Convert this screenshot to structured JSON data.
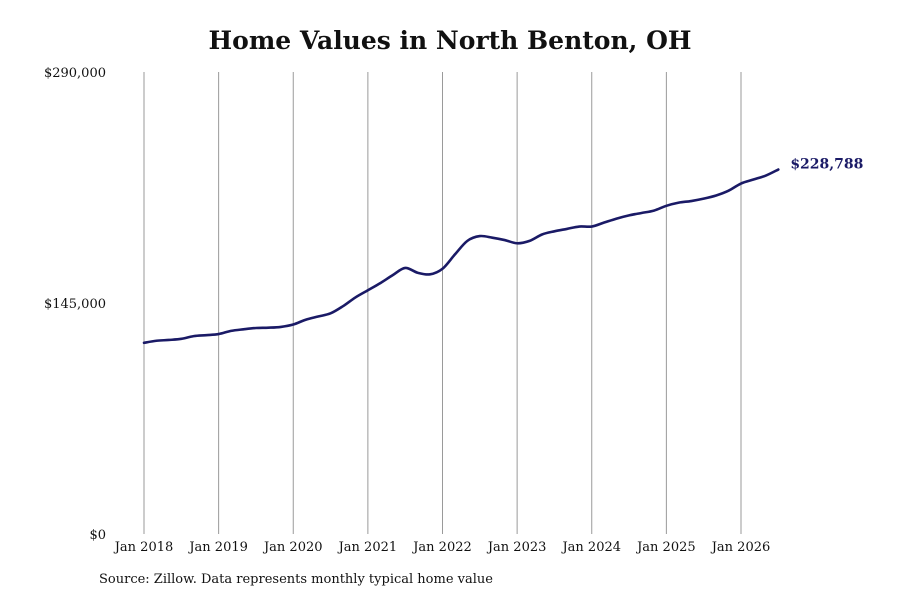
{
  "page": {
    "title": "Home Values in North Benton, OH",
    "source": "Source: Zillow. Data represents monthly typical home value"
  },
  "chart_data": {
    "type": "line",
    "title": "Home Values in North Benton, OH",
    "xlabel": "",
    "ylabel": "",
    "ylim": [
      0,
      290000
    ],
    "y_ticks": [
      {
        "value": 0,
        "label": "$0"
      },
      {
        "value": 145000,
        "label": "$145,000"
      },
      {
        "value": 290000,
        "label": "$290,000"
      }
    ],
    "x_ticks": [
      "Jan 2018",
      "Jan 2019",
      "Jan 2020",
      "Jan 2021",
      "Jan 2022",
      "Jan 2023",
      "Jan 2024",
      "Jan 2025",
      "Jan 2026"
    ],
    "x_ticks_dates": [
      "2018-01",
      "2019-01",
      "2020-01",
      "2021-01",
      "2022-01",
      "2023-01",
      "2024-01",
      "2025-01",
      "2026-01"
    ],
    "grid": "vertical",
    "line_color": "#1a1a66",
    "end_label": "$228,788",
    "series": [
      {
        "x": [
          "2018-01",
          "2018-03",
          "2018-05",
          "2018-07",
          "2018-09",
          "2018-11",
          "2019-01",
          "2019-03",
          "2019-05",
          "2019-07",
          "2019-09",
          "2019-11",
          "2020-01",
          "2020-03",
          "2020-05",
          "2020-07",
          "2020-09",
          "2020-11",
          "2021-01",
          "2021-03",
          "2021-05",
          "2021-07",
          "2021-09",
          "2021-11",
          "2022-01",
          "2022-03",
          "2022-05",
          "2022-07",
          "2022-09",
          "2022-11",
          "2023-01",
          "2023-03",
          "2023-05",
          "2023-07",
          "2023-09",
          "2023-11",
          "2024-01",
          "2024-03",
          "2024-05",
          "2024-07",
          "2024-09",
          "2024-11",
          "2025-01",
          "2025-03",
          "2025-05",
          "2025-07",
          "2025-09",
          "2025-11",
          "2026-01",
          "2026-03",
          "2026-05",
          "2026-07"
        ],
        "y": [
          120000,
          121300,
          121800,
          122500,
          124200,
          124800,
          125500,
          127500,
          128500,
          129300,
          129500,
          130000,
          131500,
          134500,
          136500,
          138500,
          143000,
          148500,
          153000,
          157500,
          162500,
          167000,
          164000,
          163000,
          166500,
          175500,
          184000,
          187000,
          186000,
          184500,
          182500,
          184000,
          188000,
          190000,
          191500,
          193000,
          193000,
          195500,
          198000,
          200000,
          201500,
          203000,
          206000,
          208000,
          209000,
          210500,
          212500,
          215500,
          220000,
          222500,
          225000,
          228788
        ]
      }
    ]
  }
}
